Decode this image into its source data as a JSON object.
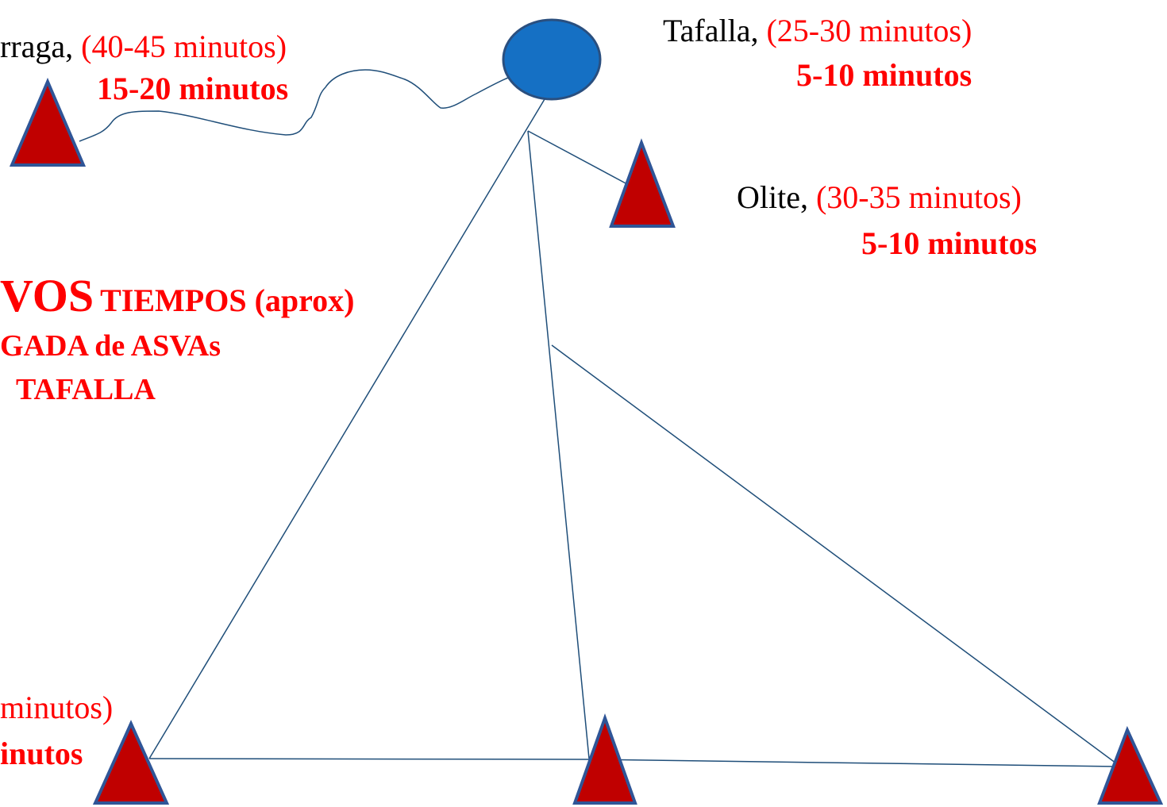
{
  "nodes": [
    {
      "name": "rraga, ",
      "range": "(40-45 minutos)",
      "time": "15-20 minutos"
    },
    {
      "name": "Tafalla, ",
      "range": "(25-30 minutos)",
      "time": "5-10 minutos"
    },
    {
      "name": "Olite, ",
      "range": "(30-35 minutos)",
      "time": "5-10 minutos"
    },
    {
      "range": "minutos)",
      "time": "inutos"
    }
  ],
  "heading": {
    "big": "VOS",
    "line1": "TIEMPOS (aprox)",
    "line2": "GADA de ASVAs",
    "line3": "TAFALLA"
  }
}
